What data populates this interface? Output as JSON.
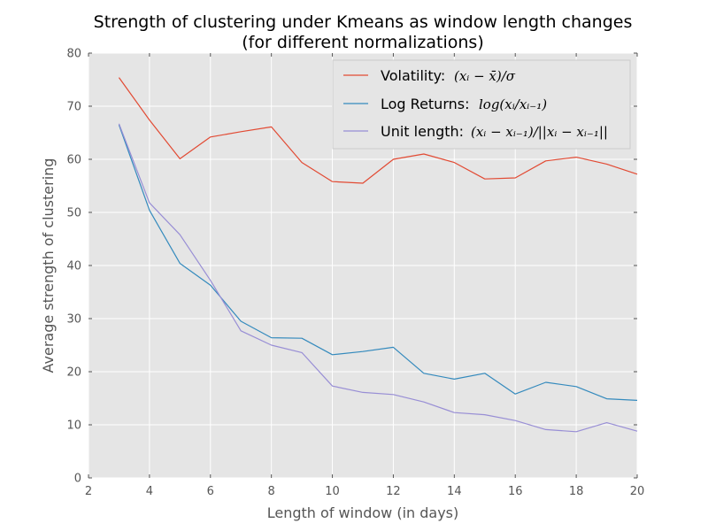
{
  "chart_data": {
    "type": "line",
    "title": "Strength of clustering under Kmeans as window length changes",
    "subtitle": "(for different normalizations)",
    "xlabel": "Length of window (in days)",
    "ylabel": "Average strength of clustering",
    "xlim": [
      2,
      20
    ],
    "ylim": [
      0,
      80
    ],
    "xticks": [
      2,
      4,
      6,
      8,
      10,
      12,
      14,
      16,
      18,
      20
    ],
    "yticks": [
      0,
      10,
      20,
      30,
      40,
      50,
      60,
      70,
      80
    ],
    "grid": true,
    "legend_position": "top-right",
    "x": [
      3,
      4,
      5,
      6,
      7,
      8,
      9,
      10,
      11,
      12,
      13,
      14,
      15,
      16,
      17,
      18,
      19,
      20
    ],
    "series": [
      {
        "name": "Volatility:",
        "formula": "(xᵢ − x̄)/σ",
        "color": "#E24A33",
        "values": [
          75.4,
          67.4,
          60.1,
          64.2,
          65.2,
          66.1,
          59.4,
          55.8,
          55.5,
          60.0,
          61.0,
          59.4,
          56.3,
          56.5,
          59.7,
          60.4,
          59.1,
          57.2
        ]
      },
      {
        "name": "Log Returns:",
        "formula": "log(xᵢ/xᵢ₋₁)",
        "color": "#348ABD",
        "values": [
          66.5,
          50.4,
          40.4,
          36.3,
          29.5,
          26.4,
          26.3,
          23.2,
          23.8,
          24.6,
          19.7,
          18.6,
          19.7,
          15.8,
          18.0,
          17.2,
          14.9,
          14.6
        ]
      },
      {
        "name": "Unit length:",
        "formula": "(xᵢ − xᵢ₋₁)/||xᵢ − xᵢ₋₁||",
        "color": "#988ED5",
        "values": [
          66.7,
          51.8,
          45.8,
          37.2,
          27.7,
          25.0,
          23.6,
          17.3,
          16.1,
          15.7,
          14.3,
          12.3,
          11.9,
          10.8,
          9.1,
          8.7,
          10.4,
          8.8
        ]
      }
    ]
  }
}
